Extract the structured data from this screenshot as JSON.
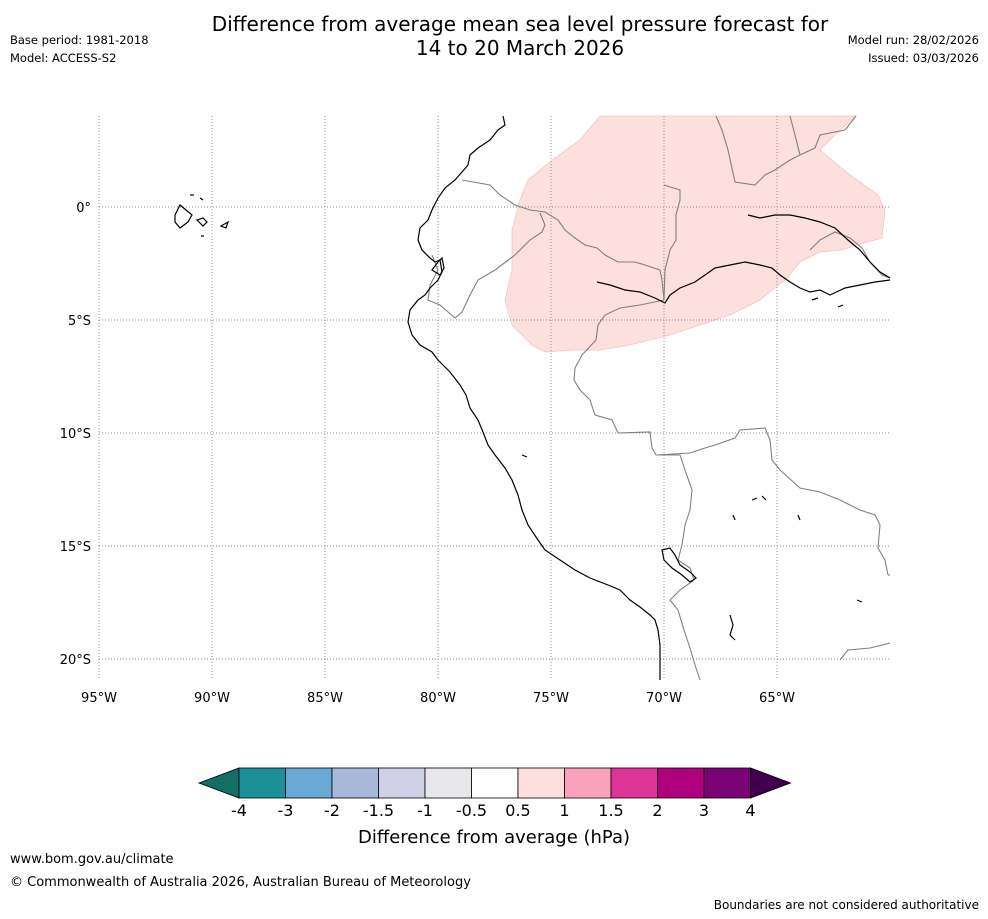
{
  "header": {
    "title_line1": "Difference from average mean sea level pressure forecast for",
    "title_line2": "14 to 20 March 2026",
    "base_period": "Base period: 1981-2018",
    "model": "Model: ACCESS-S2",
    "model_run": "Model run: 28/02/2026",
    "issued": "Issued: 03/03/2026"
  },
  "map": {
    "lat_labels": [
      "0°",
      "5°S",
      "10°S",
      "15°S",
      "20°S"
    ],
    "lon_labels": [
      "95°W",
      "90°W",
      "85°W",
      "80°W",
      "75°W",
      "70°W",
      "65°W"
    ],
    "anomaly_region_label": "0.5 to 1 hPa above average",
    "colors": {
      "coast": "#000000",
      "border": "#808080",
      "grid": "#888888",
      "anomaly_fill": "#fddfdd"
    }
  },
  "colorbar": {
    "ticks": [
      "-4",
      "-3",
      "-2",
      "-1.5",
      "-1",
      "-0.5",
      "0.5",
      "1",
      "1.5",
      "2",
      "3",
      "4"
    ],
    "colors": [
      "#136f63",
      "#1b9197",
      "#6aa9d3",
      "#a8b9db",
      "#cfd0e5",
      "#e8e7ea",
      "#ffffff",
      "#fddfdd",
      "#f9a1bd",
      "#de3498",
      "#af007d",
      "#7a0277",
      "#3f004f"
    ],
    "label": "Difference from average (hPa)"
  },
  "footer": {
    "url": "www.bom.gov.au/climate",
    "copyright": "© Commonwealth of Australia 2026, Australian Bureau of Meteorology",
    "disclaimer": "Boundaries are not considered authoritative"
  }
}
